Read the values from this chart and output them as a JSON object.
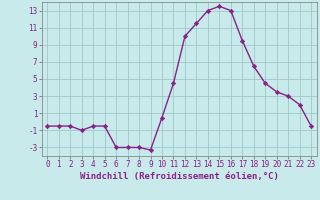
{
  "x": [
    0,
    1,
    2,
    3,
    4,
    5,
    6,
    7,
    8,
    9,
    10,
    11,
    12,
    13,
    14,
    15,
    16,
    17,
    18,
    19,
    20,
    21,
    22,
    23
  ],
  "y": [
    -0.5,
    -0.5,
    -0.5,
    -1.0,
    -0.5,
    -0.5,
    -3.0,
    -3.0,
    -3.0,
    -3.3,
    0.5,
    4.5,
    10.0,
    11.5,
    13.0,
    13.5,
    13.0,
    9.5,
    6.5,
    4.5,
    3.5,
    3.0,
    2.0,
    -0.5
  ],
  "line_color": "#882288",
  "marker": "D",
  "marker_size": 2.2,
  "bg_color": "#c8eaea",
  "grid_color": "#a0c8c8",
  "xlabel": "Windchill (Refroidissement éolien,°C)",
  "ylim": [
    -4,
    14
  ],
  "xlim": [
    -0.5,
    23.5
  ],
  "yticks": [
    -3,
    -1,
    1,
    3,
    5,
    7,
    9,
    11,
    13
  ],
  "xticks": [
    0,
    1,
    2,
    3,
    4,
    5,
    6,
    7,
    8,
    9,
    10,
    11,
    12,
    13,
    14,
    15,
    16,
    17,
    18,
    19,
    20,
    21,
    22,
    23
  ],
  "tick_label_fontsize": 5.5,
  "xlabel_fontsize": 6.5,
  "line_width": 1.0
}
